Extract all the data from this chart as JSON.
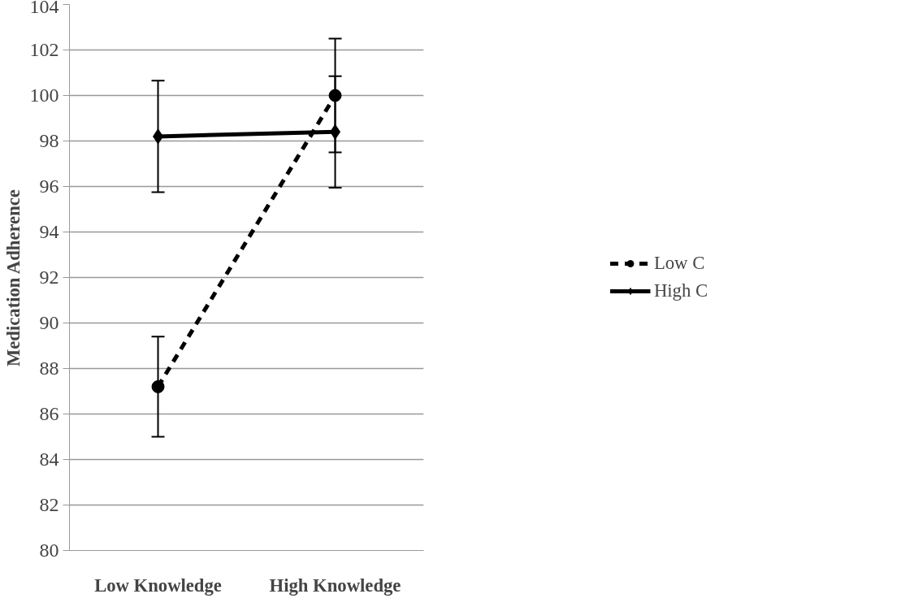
{
  "chart_data": {
    "type": "line",
    "ylabel": "Medication Adherence",
    "categories": [
      "Low Knowledge",
      "High Knowledge"
    ],
    "series": [
      {
        "name": "Low C",
        "color": "#000000",
        "values": [
          87.2,
          100.0
        ],
        "errors": [
          2.2,
          2.5
        ],
        "marker": "circle",
        "line_style": "dashed"
      },
      {
        "name": "High C",
        "color": "#000000",
        "values": [
          98.2,
          98.4
        ],
        "errors": [
          2.45,
          2.45
        ],
        "marker": "diamond",
        "line_style": "solid"
      }
    ],
    "ylim": [
      80,
      104
    ],
    "yticks": [
      80,
      82,
      84,
      86,
      88,
      90,
      92,
      94,
      96,
      98,
      100,
      102,
      104
    ],
    "grid": "y",
    "legend": "right"
  }
}
